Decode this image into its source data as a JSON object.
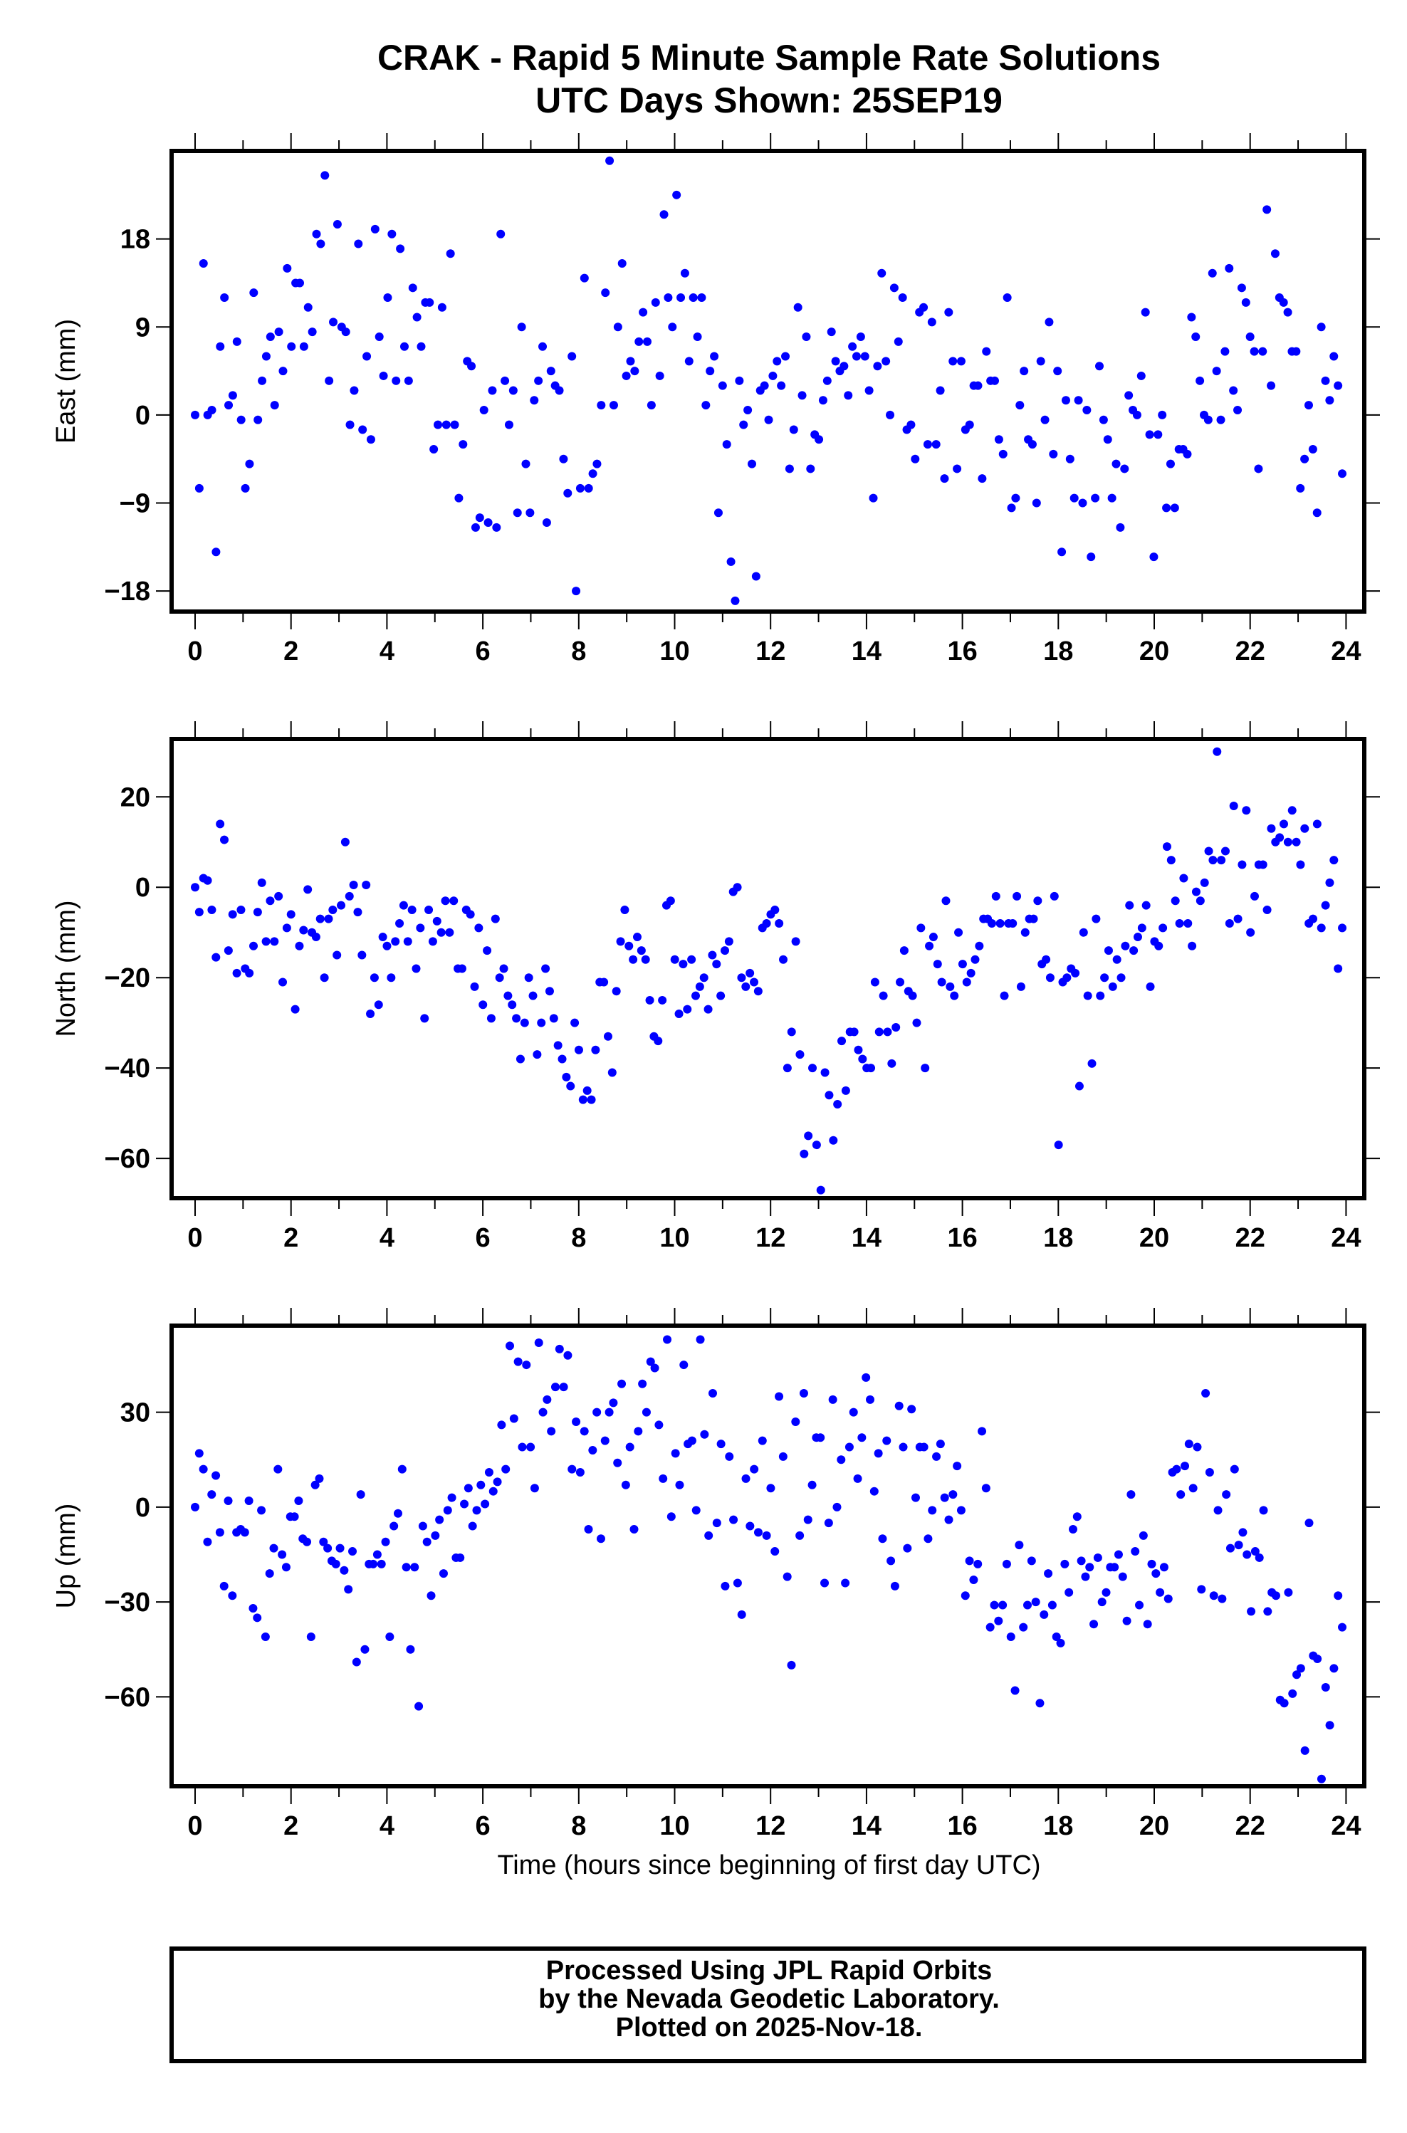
{
  "title_line1": "CRAK - Rapid 5 Minute Sample Rate Solutions",
  "title_line2": "UTC Days Shown:  25SEP19",
  "footer": {
    "line1": "Processed Using JPL Rapid Orbits",
    "line2": "by the Nevada Geodetic Laboratory.",
    "line3": "Plotted on 2025-Nov-18."
  },
  "colors": {
    "points": "#0000ff",
    "frame": "#000000"
  },
  "chart_data": [
    {
      "type": "scatter",
      "name": "east",
      "ylabel": "East (mm)",
      "xlabel": "",
      "xlim": [
        -0.49,
        24.38
      ],
      "ylim": [
        -20.1,
        27.0
      ],
      "xticks": [
        0,
        2,
        4,
        6,
        8,
        10,
        12,
        14,
        16,
        18,
        20,
        22,
        24
      ],
      "yticks": [
        -18,
        -9,
        0,
        9,
        18
      ],
      "ytick_labels": [
        "−18",
        "−9",
        "0",
        "9",
        "18"
      ],
      "x_start": 0,
      "x_end": 23.92,
      "values": [
        0,
        -7.5,
        15.5,
        0,
        0.5,
        -14,
        7,
        12,
        1,
        2,
        7.5,
        -0.5,
        -7.5,
        -5,
        12.5,
        -0.5,
        3.5,
        6,
        8,
        1,
        8.5,
        4.5,
        15,
        7,
        13.5,
        13.5,
        7,
        11,
        8.5,
        18.5,
        17.5,
        24.5,
        3.5,
        9.5,
        19.5,
        9,
        8.5,
        -1,
        2.5,
        17.5,
        -1.5,
        6,
        -2.5,
        19,
        8,
        4,
        12,
        18.5,
        3.5,
        17,
        7,
        3.5,
        13,
        10,
        7,
        11.5,
        11.5,
        -3.5,
        -1,
        11,
        -1,
        16.5,
        -1,
        -8.5,
        -3,
        5.5,
        5,
        -11.5,
        -10.5,
        0.5,
        -11,
        2.5,
        -11.5,
        18.5,
        3.5,
        -1,
        2.5,
        -10,
        9,
        -5,
        -10,
        1.5,
        3.5,
        7,
        -11,
        4.5,
        3,
        2.5,
        -4.5,
        -8,
        6,
        -18,
        -7.5,
        14,
        -7.5,
        -6,
        -5,
        1,
        12.5,
        26,
        1,
        9,
        15.5,
        4,
        5.5,
        4.5,
        7.5,
        10.5,
        7.5,
        1,
        11.5,
        4,
        20.5,
        12,
        9,
        22.5,
        12,
        14.5,
        5.5,
        12,
        8,
        12,
        1,
        4.5,
        6,
        -10,
        3,
        -3,
        -15,
        -19,
        3.5,
        -1,
        0.5,
        -5,
        -16.5,
        2.5,
        3,
        -0.5,
        4,
        5.5,
        3,
        6,
        -5.5,
        -1.5,
        11,
        2,
        8,
        -5.5,
        -2,
        -2.5,
        1.5,
        3.5,
        8.5,
        5.5,
        4.5,
        5,
        2,
        7,
        6,
        8,
        6,
        2.5,
        -8.5,
        5,
        14.5,
        5.5,
        0,
        13,
        7.5,
        12,
        -1.5,
        -1,
        -4.5,
        10.5,
        11,
        -3,
        9.5,
        -3,
        2.5,
        -6.5,
        10.5,
        5.5,
        -5.5,
        5.5,
        -1.5,
        -1,
        3,
        3,
        -6.5,
        6.5,
        3.5,
        3.5,
        -2.5,
        -4,
        12,
        -9.5,
        -8.5,
        1,
        4.5,
        -2.5,
        -3,
        -9,
        5.5,
        -0.5,
        9.5,
        -4,
        4.5,
        -14,
        1.5,
        -4.5,
        -8.5,
        1.5,
        -9,
        0.5,
        -14.5,
        -8.5,
        5,
        -0.5,
        -2.5,
        -8.5,
        -5,
        -11.5,
        -5.5,
        2,
        0.5,
        0,
        4,
        10.5,
        -2,
        -14.5,
        -2,
        0,
        -9.5,
        -5,
        -9.5,
        -3.5,
        -3.5,
        -4,
        10,
        8,
        3.5,
        0,
        -0.5,
        14.5,
        4.5,
        -0.5,
        6.5,
        15,
        2.5,
        0.5,
        13,
        11.5,
        8,
        6.5,
        -5.5,
        6.5,
        21,
        3,
        16.5,
        12,
        11.5,
        10.5,
        6.5,
        6.5,
        -7.5,
        -4.5,
        1,
        -3.5,
        -10,
        9,
        3.5,
        1.5,
        6,
        3,
        -6
      ]
    },
    {
      "type": "scatter",
      "name": "north",
      "ylabel": "North (mm)",
      "xlabel": "",
      "xlim": [
        -0.49,
        24.38
      ],
      "ylim": [
        -68.8,
        32.8
      ],
      "xticks": [
        0,
        2,
        4,
        6,
        8,
        10,
        12,
        14,
        16,
        18,
        20,
        22,
        24
      ],
      "yticks": [
        -60,
        -40,
        -20,
        0,
        20
      ],
      "ytick_labels": [
        "−60",
        "−40",
        "−20",
        "0",
        "20"
      ],
      "x_start": 0,
      "x_end": 23.92,
      "values": [
        0,
        -5.5,
        2,
        1.5,
        -5,
        -15.5,
        14,
        10.5,
        -14,
        -6,
        -19,
        -5,
        -18,
        -19,
        -13,
        -5.5,
        1,
        -12,
        -3,
        -12,
        -2,
        -21,
        -9,
        -6,
        -27,
        -13,
        -9.5,
        -0.5,
        -10,
        -11,
        -7,
        -20,
        -7,
        -5,
        -15,
        -4,
        10,
        -2,
        0.5,
        -5.5,
        -15,
        0.5,
        -28,
        -20,
        -26,
        -11,
        -13,
        -20,
        -12,
        -8,
        -4,
        -12,
        -5,
        -18,
        -9,
        -29,
        -5,
        -12,
        -7.5,
        -10,
        -3,
        -10,
        -3,
        -18,
        -18,
        -5,
        -6,
        -22,
        -9,
        -26,
        -14,
        -29,
        -7,
        -20,
        -18,
        -24,
        -26,
        -29,
        -38,
        -30,
        -20,
        -24,
        -37,
        -30,
        -18,
        -23,
        -29,
        -35,
        -38,
        -42,
        -44,
        -30,
        -36,
        -47,
        -45,
        -47,
        -36,
        -21,
        -21,
        -33,
        -41,
        -23,
        -12,
        -5,
        -13,
        -16,
        -11,
        -14,
        -16,
        -25,
        -33,
        -34,
        -25,
        -4,
        -3,
        -16,
        -28,
        -17,
        -27,
        -16,
        -24,
        -22,
        -20,
        -27,
        -15,
        -17,
        -24,
        -14,
        -12,
        -1,
        0,
        -20,
        -22,
        -19,
        -21,
        -23,
        -9,
        -8,
        -6,
        -5,
        -8,
        -16,
        -40,
        -32,
        -12,
        -37,
        -59,
        -55,
        -40,
        -57,
        -67,
        -41,
        -46,
        -56,
        -48,
        -34,
        -45,
        -32,
        -32,
        -36,
        -38,
        -40,
        -40,
        -21,
        -32,
        -24,
        -32,
        -39,
        -31,
        -21,
        -14,
        -23,
        -24,
        -30,
        -9,
        -40,
        -13,
        -11,
        -17,
        -21,
        -3,
        -22,
        -24,
        -10,
        -17,
        -21,
        -19,
        -16,
        -13,
        -7,
        -7,
        -8,
        -2,
        -8,
        -24,
        -8,
        -8,
        -2,
        -22,
        -10,
        -7,
        -7,
        -3,
        -17,
        -16,
        -20,
        -2,
        -57,
        -21,
        -20,
        -18,
        -19,
        -44,
        -10,
        -24,
        -39,
        -7,
        -24,
        -20,
        -14,
        -22,
        -16,
        -20,
        -13,
        -4,
        -14,
        -11,
        -9,
        -4,
        -22,
        -12,
        -13,
        -9,
        9,
        6,
        -3,
        -8,
        2,
        -8,
        -13,
        -1,
        -3,
        1,
        8,
        6,
        30,
        6,
        8,
        -8,
        18,
        -7,
        5,
        17,
        -10,
        -2,
        5,
        5,
        -5,
        13,
        10,
        11,
        14,
        10,
        17,
        10,
        5,
        13,
        -8,
        -7,
        14,
        -9,
        -4,
        1,
        6,
        -18,
        -9
      ]
    },
    {
      "type": "scatter",
      "name": "up",
      "ylabel": "Up (mm)",
      "xlabel": "Time (hours since beginning of first day UTC)",
      "xlim": [
        -0.49,
        24.38
      ],
      "ylim": [
        -88.3,
        57.4
      ],
      "xticks": [
        0,
        2,
        4,
        6,
        8,
        10,
        12,
        14,
        16,
        18,
        20,
        22,
        24
      ],
      "yticks": [
        -60,
        -30,
        0,
        30
      ],
      "ytick_labels": [
        "−60",
        "−30",
        "0",
        "30"
      ],
      "x_start": 0,
      "x_end": 23.92,
      "values": [
        0,
        17,
        12,
        -11,
        4,
        10,
        -8,
        -25,
        2,
        -28,
        -8,
        -7,
        -8,
        2,
        -32,
        -35,
        -1,
        -41,
        -21,
        -13,
        12,
        -15,
        -19,
        -3,
        -3,
        2,
        -10,
        -11,
        -41,
        7,
        9,
        -11,
        -13,
        -17,
        -18,
        -13,
        -20,
        -26,
        -14,
        -49,
        4,
        -45,
        -18,
        -18,
        -15,
        -18,
        -11,
        -41,
        -6,
        -2,
        12,
        -19,
        -45,
        -19,
        -63,
        -6,
        -11,
        -28,
        -9,
        -4,
        -21,
        -1,
        3,
        -16,
        -16,
        1,
        6,
        -6,
        -1,
        7,
        1,
        11,
        5,
        8,
        26,
        12,
        51,
        28,
        46,
        19,
        45,
        19,
        6,
        52,
        30,
        34,
        24,
        38,
        50,
        38,
        48,
        12,
        27,
        11,
        24,
        -7,
        18,
        30,
        -10,
        21,
        30,
        33,
        14,
        39,
        7,
        19,
        -7,
        24,
        39,
        30,
        46,
        44,
        26,
        9,
        53,
        -3,
        17,
        7,
        45,
        20,
        21,
        -1,
        53,
        23,
        -9,
        36,
        -5,
        20,
        -25,
        16,
        -4,
        -24,
        -34,
        9,
        -6,
        12,
        -8,
        21,
        -9,
        6,
        -14,
        35,
        16,
        -22,
        -50,
        27,
        -9,
        36,
        -4,
        7,
        22,
        22,
        -24,
        -5,
        34,
        0,
        15,
        -24,
        19,
        30,
        9,
        22,
        41,
        34,
        5,
        17,
        -10,
        21,
        -17,
        -25,
        32,
        19,
        -13,
        31,
        3,
        19,
        19,
        -10,
        -1,
        16,
        20,
        3,
        -4,
        4,
        13,
        -1,
        -28,
        -17,
        -23,
        -18,
        24,
        6,
        -38,
        -31,
        -36,
        -31,
        -18,
        -41,
        -58,
        -12,
        -38,
        -31,
        -17,
        -30,
        -62,
        -34,
        -21,
        -31,
        -41,
        -43,
        -18,
        -27,
        -7,
        -3,
        -17,
        -22,
        -19,
        -37,
        -16,
        -30,
        -27,
        -19,
        -19,
        -15,
        -22,
        -36,
        4,
        -14,
        -31,
        -9,
        -37,
        -18,
        -21,
        -27,
        -19,
        -29,
        11,
        12,
        4,
        13,
        20,
        6,
        19,
        -26,
        36,
        11,
        -28,
        -1,
        -29,
        4,
        -13,
        12,
        -12,
        -8,
        -15,
        -33,
        -14,
        -16,
        -1,
        -33,
        -27,
        -28,
        -61,
        -62,
        -27,
        -59,
        -53,
        -51,
        -77,
        -5,
        -47,
        -48,
        -86,
        -57,
        -69,
        -51,
        -28,
        -38
      ]
    }
  ]
}
